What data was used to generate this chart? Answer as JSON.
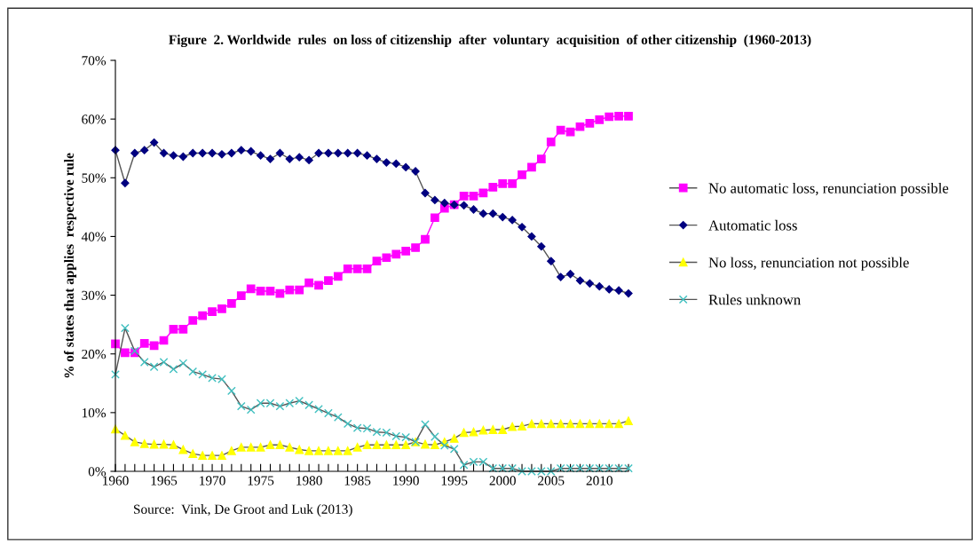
{
  "chart_data": {
    "type": "line",
    "title": "Figure  2. Worldwide  rules  on loss of citizenship  after  voluntary  acquisition  of other citizenship  (1960-2013)",
    "ylabel": "% of states that applies  respective rule",
    "annotations": [
      "Source:  Vink, De Groot and Luk (2013)"
    ],
    "x": [
      1960,
      1961,
      1962,
      1963,
      1964,
      1965,
      1966,
      1967,
      1968,
      1969,
      1970,
      1971,
      1972,
      1973,
      1974,
      1975,
      1976,
      1977,
      1978,
      1979,
      1980,
      1981,
      1982,
      1983,
      1984,
      1985,
      1986,
      1987,
      1988,
      1989,
      1990,
      1991,
      1992,
      1993,
      1994,
      1995,
      1996,
      1997,
      1998,
      1999,
      2000,
      2001,
      2002,
      2003,
      2004,
      2005,
      2006,
      2007,
      2008,
      2009,
      2010,
      2011,
      2012,
      2013
    ],
    "series": [
      {
        "name": "No automatic loss, renunciation possible",
        "color": "#ff00ff",
        "marker": "square",
        "values": [
          21.7,
          20.2,
          20.2,
          21.8,
          21.4,
          22.3,
          24.2,
          24.2,
          25.7,
          26.5,
          27.2,
          27.7,
          28.6,
          29.9,
          31.1,
          30.7,
          30.7,
          30.3,
          30.9,
          30.9,
          32.1,
          31.7,
          32.5,
          33.2,
          34.5,
          34.5,
          34.5,
          35.8,
          36.4,
          37.0,
          37.5,
          38.1,
          39.5,
          43.2,
          44.8,
          45.4,
          46.9,
          46.9,
          47.4,
          48.4,
          49.0,
          49.0,
          50.5,
          51.8,
          53.2,
          56.1,
          58.1,
          57.8,
          58.7,
          59.3,
          59.9,
          60.4,
          60.5,
          60.5
        ]
      },
      {
        "name": "Automatic loss",
        "color": "#000080",
        "marker": "diamond",
        "values": [
          54.7,
          49.1,
          54.2,
          54.7,
          56.0,
          54.2,
          53.8,
          53.6,
          54.2,
          54.2,
          54.2,
          54.0,
          54.2,
          54.7,
          54.5,
          53.8,
          53.2,
          54.2,
          53.2,
          53.5,
          53.0,
          54.2,
          54.2,
          54.2,
          54.2,
          54.2,
          53.8,
          53.2,
          52.6,
          52.4,
          51.8,
          51.1,
          47.4,
          46.2,
          45.7,
          45.4,
          45.3,
          44.6,
          43.9,
          43.9,
          43.3,
          42.8,
          41.6,
          40.0,
          38.3,
          35.8,
          33.1,
          33.6,
          32.5,
          32.0,
          31.5,
          31.0,
          30.8,
          30.3
        ]
      },
      {
        "name": "No loss, renunciation not possible",
        "color": "#ffff00",
        "marker": "triangle",
        "values": [
          7.2,
          6.1,
          5.0,
          4.7,
          4.6,
          4.6,
          4.5,
          3.7,
          3.0,
          2.7,
          2.7,
          2.7,
          3.5,
          4.1,
          4.1,
          4.1,
          4.5,
          4.5,
          4.1,
          3.7,
          3.5,
          3.5,
          3.5,
          3.5,
          3.5,
          4.1,
          4.5,
          4.5,
          4.5,
          4.5,
          4.5,
          5.0,
          4.6,
          4.5,
          5.0,
          5.6,
          6.6,
          6.7,
          7.0,
          7.1,
          7.1,
          7.6,
          7.7,
          8.1,
          8.1,
          8.1,
          8.1,
          8.1,
          8.1,
          8.1,
          8.1,
          8.1,
          8.1,
          8.6
        ]
      },
      {
        "name": "Rules unknown",
        "color": "#40c0c0",
        "marker": "cross",
        "values": [
          16.5,
          24.4,
          20.5,
          18.6,
          17.8,
          18.6,
          17.4,
          18.4,
          17.0,
          16.5,
          15.9,
          15.7,
          13.7,
          11.1,
          10.5,
          11.6,
          11.6,
          11.1,
          11.6,
          12.0,
          11.3,
          10.6,
          9.9,
          9.2,
          8.1,
          7.4,
          7.3,
          6.7,
          6.6,
          6.0,
          5.8,
          5.0,
          8.0,
          5.9,
          4.4,
          3.8,
          1.1,
          1.6,
          1.6,
          0.5,
          0.5,
          0.5,
          0.0,
          0.0,
          0.0,
          0.0,
          0.5,
          0.5,
          0.5,
          0.5,
          0.5,
          0.5,
          0.5,
          0.5
        ]
      }
    ],
    "xlim": [
      1960,
      2013
    ],
    "xticks": [
      1960,
      {
        "value": 1961,
        "label": null
      },
      {
        "value": 1962,
        "label": null
      },
      {
        "value": 1963,
        "label": null
      },
      {
        "value": 1964,
        "label": null
      },
      1965,
      {
        "value": 1966,
        "label": null
      },
      {
        "value": 1967,
        "label": null
      },
      {
        "value": 1968,
        "label": null
      },
      {
        "value": 1969,
        "label": null
      },
      1970,
      {
        "value": 1971,
        "label": null
      },
      {
        "value": 1972,
        "label": null
      },
      {
        "value": 1973,
        "label": null
      },
      {
        "value": 1974,
        "label": null
      },
      1975,
      {
        "value": 1976,
        "label": null
      },
      {
        "value": 1977,
        "label": null
      },
      {
        "value": 1978,
        "label": null
      },
      {
        "value": 1979,
        "label": null
      },
      1980,
      {
        "value": 1981,
        "label": null
      },
      {
        "value": 1982,
        "label": null
      },
      {
        "value": 1983,
        "label": null
      },
      {
        "value": 1984,
        "label": null
      },
      1985,
      {
        "value": 1986,
        "label": null
      },
      {
        "value": 1987,
        "label": null
      },
      {
        "value": 1988,
        "label": null
      },
      {
        "value": 1989,
        "label": null
      },
      1990,
      {
        "value": 1991,
        "label": null
      },
      {
        "value": 1992,
        "label": null
      },
      {
        "value": 1993,
        "label": null
      },
      {
        "value": 1994,
        "label": null
      },
      1995,
      {
        "value": 1996,
        "label": null
      },
      {
        "value": 1997,
        "label": null
      },
      {
        "value": 1998,
        "label": null
      },
      {
        "value": 1999,
        "label": null
      },
      2000,
      {
        "value": 2001,
        "label": null
      },
      {
        "value": 2002,
        "label": null
      },
      {
        "value": 2003,
        "label": null
      },
      {
        "value": 2004,
        "label": null
      },
      2005,
      {
        "value": 2006,
        "label": null
      },
      {
        "value": 2007,
        "label": null
      },
      {
        "value": 2008,
        "label": null
      },
      {
        "value": 2009,
        "label": null
      },
      2010,
      {
        "value": 2011,
        "label": null
      },
      {
        "value": 2012,
        "label": null
      },
      {
        "value": 2013,
        "label": null
      }
    ],
    "ylim": [
      0,
      70
    ],
    "yticks": [
      {
        "value": 0,
        "label": "0%"
      },
      {
        "value": 10,
        "label": "10%"
      },
      {
        "value": 20,
        "label": "20%"
      },
      {
        "value": 30,
        "label": "30%"
      },
      {
        "value": 40,
        "label": "40%"
      },
      {
        "value": 50,
        "label": "50%"
      },
      {
        "value": 60,
        "label": "60%"
      },
      {
        "value": 70,
        "label": "70%"
      }
    ],
    "grid": false,
    "legend": "right",
    "line_style": "solid"
  }
}
